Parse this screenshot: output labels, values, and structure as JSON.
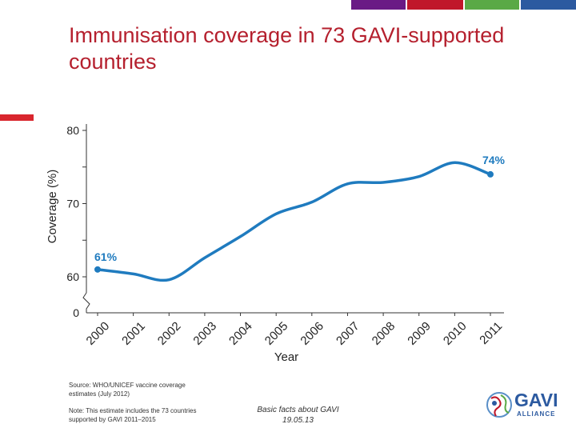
{
  "slide": {
    "title": "Immunisation coverage in 73 GAVI-supported countries",
    "colors": {
      "title": "#b5202e",
      "accent_bars": [
        "#6a1a85",
        "#c0172a",
        "#5aa946",
        "#2c5aa0"
      ],
      "line": "#1f7bbf"
    }
  },
  "footer": {
    "source": "Source: WHO/UNICEF vaccine coverage estimates (July 2012)",
    "note": "Note: This estimate includes the 73 countries supported by GAVI 2011–2015",
    "center_line1": "Basic facts about GAVI",
    "center_line2": "19.05.13",
    "logo_text": "GAVI",
    "logo_subtext": "ALLIANCE",
    "logo_icon": "gavi-globe-icon"
  },
  "chart_data": {
    "type": "line",
    "x": [
      "2000",
      "2001",
      "2002",
      "2003",
      "2004",
      "2005",
      "2006",
      "2007",
      "2008",
      "2009",
      "2010",
      "2011"
    ],
    "series": [
      {
        "values": [
          61,
          60.4,
          59.6,
          62.6,
          65.5,
          68.6,
          70.2,
          72.7,
          72.9,
          73.7,
          75.6,
          74
        ]
      }
    ],
    "xlabel": "Year",
    "ylabel": "Coverage (%)",
    "ylim": [
      60,
      80
    ],
    "yticks": [
      "80",
      "70",
      "60",
      "0"
    ],
    "axis_break": "0",
    "grid": false,
    "data_labels": [
      {
        "index": 0,
        "text": "61%"
      },
      {
        "index": 11,
        "text": "74%"
      }
    ]
  }
}
